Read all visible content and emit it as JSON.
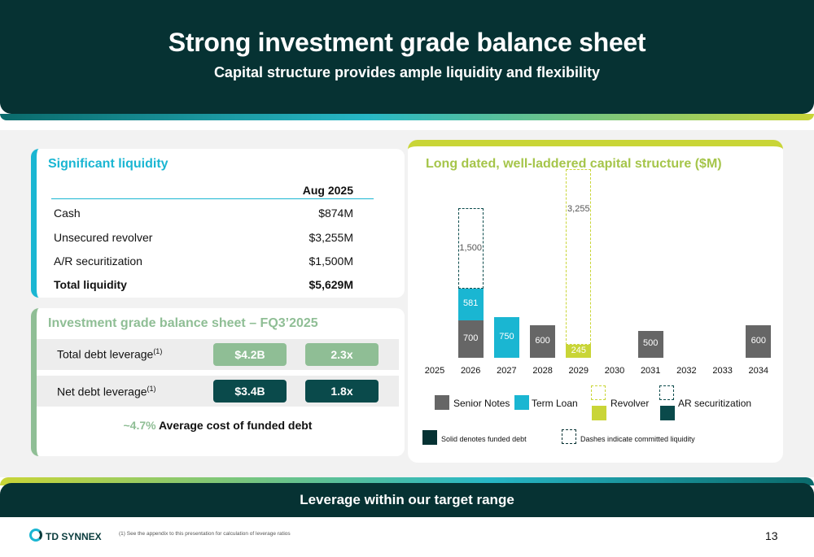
{
  "header": {
    "title": "Strong investment grade balance sheet",
    "subtitle": "Capital structure provides ample liquidity and flexibility"
  },
  "liquidity": {
    "title": "Significant liquidity",
    "column_header": "Aug 2025",
    "rows": [
      {
        "label": "Cash",
        "value": "$874M"
      },
      {
        "label": "Unsecured revolver",
        "value": "$3,255M"
      },
      {
        "label": "A/R securitization",
        "value": "$1,500M"
      },
      {
        "label": "Total liquidity",
        "value": "$5,629M"
      }
    ]
  },
  "investment_grade": {
    "title": "Investment grade balance sheet – FQ3’2025",
    "rows": [
      {
        "label": "Total debt leverage",
        "sup": "(1)",
        "amount": "$4.2B",
        "ratio": "2.3x"
      },
      {
        "label": "Net debt leverage",
        "sup": "(1)",
        "amount": "$3.4B",
        "ratio": "1.8x"
      }
    ],
    "cost_pct": "~4.7%",
    "cost_text": "Average cost of funded debt"
  },
  "chart_data": {
    "type": "bar",
    "title": "Long dated, well-laddered capital structure ($M)",
    "categories": [
      "2025",
      "2026",
      "2027",
      "2028",
      "2029",
      "2030",
      "2031",
      "2032",
      "2033",
      "2034"
    ],
    "series": [
      {
        "name": "Senior Notes",
        "color": "#666666",
        "funded": true,
        "values": [
          0,
          700,
          0,
          600,
          0,
          0,
          500,
          0,
          0,
          600
        ]
      },
      {
        "name": "Term Loan",
        "color": "#1ab6d2",
        "funded": true,
        "values": [
          0,
          581,
          750,
          0,
          0,
          0,
          0,
          0,
          0,
          0
        ]
      },
      {
        "name": "Revolver",
        "color": "#c9d537",
        "funded": true,
        "values": [
          0,
          0,
          0,
          0,
          245,
          0,
          0,
          0,
          0,
          0
        ]
      },
      {
        "name": "Revolver",
        "color": "#c9d537",
        "funded": false,
        "values": [
          0,
          0,
          0,
          0,
          3255,
          0,
          0,
          0,
          0,
          0
        ]
      },
      {
        "name": "AR securitization",
        "color": "#0a4a4b",
        "funded": false,
        "values": [
          0,
          1500,
          0,
          0,
          0,
          0,
          0,
          0,
          0,
          0
        ]
      }
    ],
    "legend": [
      "Senior Notes",
      "Term Loan",
      "Revolver",
      "AR securitization"
    ],
    "notes": [
      "Solid denotes funded debt",
      "Dashes indicate committed liquidity"
    ]
  },
  "footer": {
    "banner": "Leverage within our target range",
    "logo_text": "TD SYNNEX",
    "footnote": "(1) See the appendix to this presentation for calculation of leverage ratios",
    "page_number": "13"
  },
  "colors": {
    "dark_teal": "#063233",
    "cyan": "#1ab6d2",
    "green": "#8fbe95",
    "lime": "#c9d537",
    "grey": "#666666"
  }
}
